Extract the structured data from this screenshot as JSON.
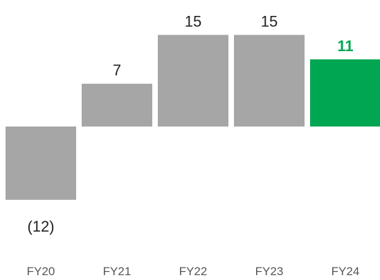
{
  "chart_data": {
    "type": "bar",
    "categories": [
      "FY20",
      "FY21",
      "FY22",
      "FY23",
      "FY24"
    ],
    "values": [
      -12,
      7,
      15,
      15,
      11
    ],
    "value_labels": [
      "(12)",
      "7",
      "15",
      "15",
      "11"
    ],
    "highlight_index": 4,
    "colors": {
      "default": "#a6a6a6",
      "highlight": "#00a651"
    },
    "ylim": [
      -12,
      15
    ],
    "title": "",
    "xlabel": "",
    "ylabel": "",
    "grid": false,
    "legend": "none"
  }
}
